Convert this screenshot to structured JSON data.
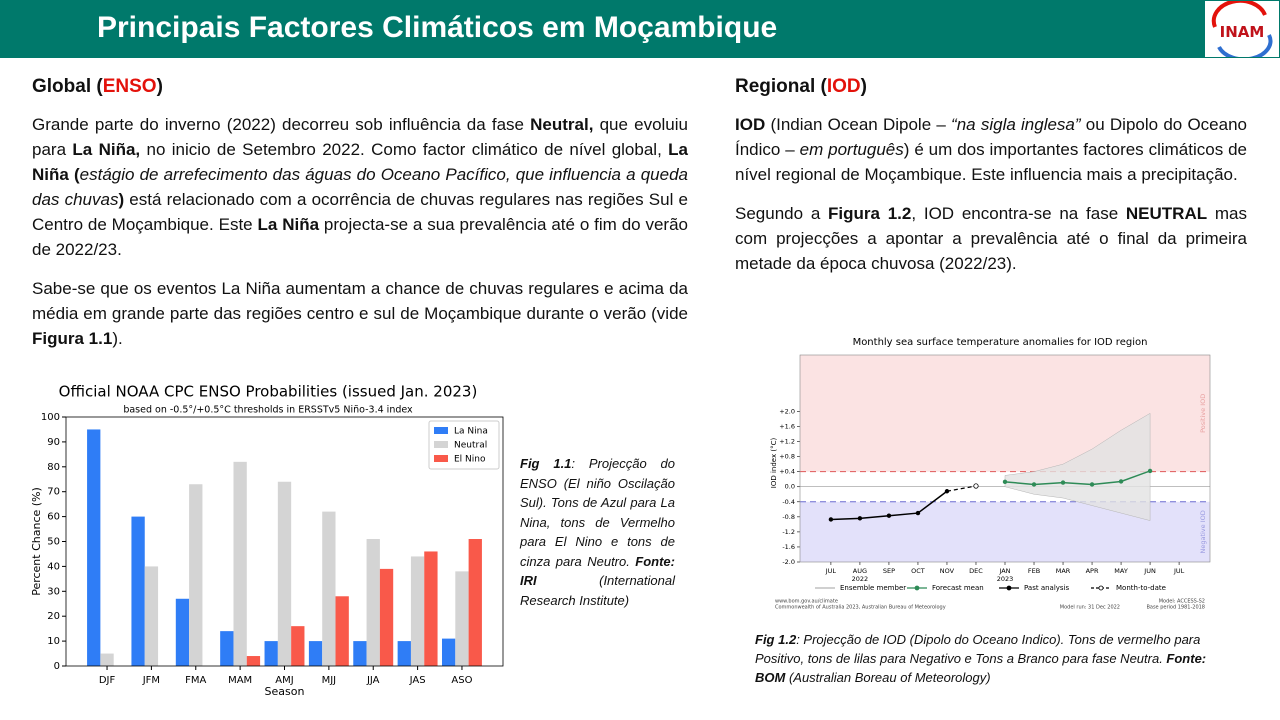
{
  "header": {
    "title": "Principais Factores Climáticos em Moçambique",
    "logo": "INAM"
  },
  "left": {
    "heading": [
      {
        "t": "Global ("
      },
      {
        "t": "ENSO",
        "s": "red"
      },
      {
        "t": ")"
      }
    ],
    "paragraphs": [
      [
        {
          "t": "Grande parte do inverno (2022) decorreu sob influência da fase "
        },
        {
          "t": "Neutral,",
          "s": "b"
        },
        {
          "t": " que evoluiu para "
        },
        {
          "t": "La Niña,",
          "s": "b"
        },
        {
          "t": " no inicio de Setembro 2022. Como factor climático de nível global, "
        },
        {
          "t": "La Niña (",
          "s": "b"
        },
        {
          "t": "estágio de arrefecimento das águas do Oceano Pacífico, que influencia a queda das chuvas",
          "s": "i"
        },
        {
          "t": ")",
          "s": "b"
        },
        {
          "t": " está relacionado com a ocorrência de chuvas regulares nas regiões Sul e Centro de Moçambique. Este "
        },
        {
          "t": "La Niña",
          "s": "b"
        },
        {
          "t": "  projecta-se a sua prevalência até o fim do verão de 2022/23."
        }
      ],
      [
        {
          "t": "Sabe-se que os eventos La Niña aumentam a chance de chuvas regulares e acima da média em grande parte das regiões centro e sul de Moçambique durante o verão (vide "
        },
        {
          "t": "Figura 1.1",
          "s": "b"
        },
        {
          "t": ")."
        }
      ]
    ],
    "caption": [
      {
        "t": "Fig 1.1",
        "s": "b"
      },
      {
        "t": ": Projecção do ENSO (El niño Oscilação Sul). Tons de Azul para La Nina, tons de Vermelho para El Nino e tons de cinza para Neutro. "
      },
      {
        "t": "Fonte: IRI",
        "s": "b"
      },
      {
        "t": " (International Research Institute)"
      }
    ]
  },
  "right": {
    "heading": [
      {
        "t": "Regional ("
      },
      {
        "t": "IOD",
        "s": "red"
      },
      {
        "t": ")"
      }
    ],
    "paragraphs": [
      [
        {
          "t": "IOD",
          "s": "b"
        },
        {
          "t": " (Indian Ocean Dipole – "
        },
        {
          "t": "“na sigla inglesa”",
          "s": "i"
        },
        {
          "t": " ou Dipolo do Oceano Índico – "
        },
        {
          "t": "em português",
          "s": "i"
        },
        {
          "t": ") é um dos importantes factores climáticos de nível regional de Moçambique. Este influencia mais a precipitação."
        }
      ],
      [
        {
          "t": "Segundo a "
        },
        {
          "t": "Figura 1.2",
          "s": "b"
        },
        {
          "t": ", IOD encontra-se na fase "
        },
        {
          "t": "NEUTRAL",
          "s": "b"
        },
        {
          "t": " mas com projecções a apontar a prevalência até o final da primeira metade da  época chuvosa (2022/23)."
        }
      ]
    ],
    "caption": [
      {
        "t": "Fig 1.2",
        "s": "b"
      },
      {
        "t": ": Projecção de IOD (Dipolo do Oceano Indico). Tons de vermelho para Positivo, tons de lilas para Negativo e Tons a Branco para fase Neutra. "
      },
      {
        "t": "Fonte: BOM",
        "s": "b"
      },
      {
        "t": " (Australian Boreau of Meteorology)"
      }
    ]
  },
  "chart_data": [
    {
      "type": "bar",
      "title": "Official NOAA CPC ENSO Probabilities (issued Jan. 2023)",
      "subtitle": "based on -0.5°/+0.5°C thresholds in ERSSTv5 Niño-3.4 index",
      "x_label": "Season",
      "y_label": "Percent Chance (%)",
      "categories": [
        "DJF",
        "JFM",
        "FMA",
        "MAM",
        "AMJ",
        "MJJ",
        "JJA",
        "JAS",
        "ASO"
      ],
      "series": [
        {
          "name": "La Nina",
          "color": "#2f7df6",
          "values": [
            95,
            60,
            27,
            14,
            10,
            10,
            10,
            10,
            11
          ]
        },
        {
          "name": "Neutral",
          "color": "#d4d4d4",
          "values": [
            5,
            40,
            73,
            82,
            74,
            62,
            51,
            44,
            38
          ]
        },
        {
          "name": "El Nino",
          "color": "#f9594a",
          "values": [
            0,
            0,
            0,
            4,
            16,
            28,
            39,
            46,
            51
          ]
        }
      ],
      "ylim": [
        0,
        100
      ],
      "yticks": [
        0,
        10,
        20,
        30,
        40,
        50,
        60,
        70,
        80,
        90,
        100
      ],
      "legend": "upper right"
    },
    {
      "type": "line",
      "title": "Monthly sea surface temperature anomalies for IOD region",
      "y_label": "IOD index (°C)",
      "categories": [
        "JUL",
        "AUG",
        "SEP",
        "OCT",
        "NOV",
        "DEC",
        "JAN",
        "FEB",
        "MAR",
        "APR",
        "MAY",
        "JUN",
        "JUL"
      ],
      "x_sublabels": [
        null,
        "2022",
        null,
        null,
        null,
        null,
        "2023",
        null,
        null,
        null,
        null,
        null,
        null
      ],
      "ylim": [
        -2.0,
        3.5
      ],
      "yticks": [
        {
          "value": 2.0,
          "label": "+2.0"
        },
        {
          "value": 1.6,
          "label": "+1.6"
        },
        {
          "value": 1.2,
          "label": "+1.2"
        },
        {
          "value": 0.8,
          "label": "+0.8"
        },
        {
          "value": 0.4,
          "label": "+0.4"
        },
        {
          "value": 0.0,
          "label": "0.0"
        },
        -0.4,
        -0.8,
        -1.2,
        -1.6,
        {
          "value": -2.0,
          "label": "-2.0"
        }
      ],
      "thresholds": [
        0.4,
        -0.4
      ],
      "region_labels": [
        "Positive IOD",
        "Negative IOD"
      ],
      "series": [
        {
          "name": "Ensemble member",
          "color": "#b5b5b5",
          "high": [
            null,
            null,
            null,
            null,
            null,
            null,
            0.3,
            0.4,
            0.6,
            1.0,
            1.5,
            1.95,
            null
          ],
          "low": [
            null,
            null,
            null,
            null,
            null,
            null,
            0.0,
            -0.2,
            -0.3,
            -0.5,
            -0.7,
            -0.9,
            null
          ]
        },
        {
          "name": "Forecast mean",
          "color": "#2e8b57",
          "values": [
            null,
            null,
            null,
            null,
            null,
            null,
            0.13,
            0.06,
            0.11,
            0.06,
            0.14,
            0.42,
            null
          ]
        },
        {
          "name": "Past analysis",
          "color": "#000000",
          "values": [
            -0.87,
            -0.84,
            -0.77,
            -0.7,
            -0.12,
            null,
            null,
            null,
            null,
            null,
            null,
            null,
            null
          ]
        },
        {
          "name": "Month-to-date",
          "color": "#000000",
          "values": [
            null,
            null,
            null,
            null,
            null,
            0.02,
            null,
            null,
            null,
            null,
            null,
            null,
            null
          ]
        }
      ],
      "footer": [
        "www.bom.gov.au/climate",
        "Commonwealth of Australia 2023, Australian Bureau of Meteorology",
        "Model: ACCESS-S2",
        "Model run: 31 Dec 2022",
        "Base period 1981-2018"
      ]
    }
  ]
}
